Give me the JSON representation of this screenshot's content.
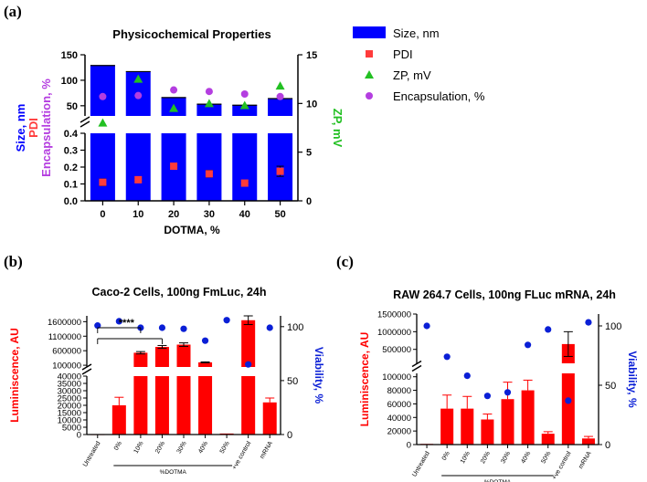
{
  "chart_data": [
    {
      "panel": "(a)",
      "type": "bar",
      "title": "Physicochemical Properties",
      "xlabel": "DOTMA, %",
      "categories": [
        "0",
        "10",
        "20",
        "30",
        "40",
        "50"
      ],
      "ylabel_lines": [
        "Size, nm",
        "PDI",
        "Encapsulation, %"
      ],
      "y2label": "ZP, mV",
      "ylim_upper": [
        30,
        150
      ],
      "yticks_upper": [
        "50",
        "100",
        "150"
      ],
      "ylim_lower": [
        0,
        0.4
      ],
      "yticks_lower": [
        "0.0",
        "0.1",
        "0.2",
        "0.3",
        "0.4"
      ],
      "y2lim": [
        0,
        15
      ],
      "y2ticks": [
        "0",
        "5",
        "10",
        "15"
      ],
      "legend": [
        "Size, nm",
        "PDI",
        "ZP, mV",
        "Encapsulation, %"
      ],
      "legend_position": "right",
      "series": [
        {
          "name": "Size, nm",
          "kind": "bar",
          "values": [
            129,
            117,
            66,
            53,
            51,
            64
          ]
        },
        {
          "name": "PDI",
          "kind": "marker",
          "values": [
            0.11,
            0.125,
            0.205,
            0.16,
            0.105,
            0.175
          ],
          "errors": [
            0.02,
            0.01,
            0.01,
            0.02,
            0.01,
            0.03
          ]
        },
        {
          "name": "ZP, mV",
          "kind": "marker",
          "values": [
            8.0,
            12.5,
            9.5,
            10.0,
            9.8,
            11.8
          ]
        },
        {
          "name": "Encapsulation, %",
          "kind": "marker",
          "values": [
            68,
            70,
            81,
            78,
            73,
            68
          ]
        }
      ],
      "colors": {
        "bar": "#0000ff",
        "pdi": "#ff3b3b",
        "zp": "#22c022",
        "enc": "#b43ee0"
      }
    },
    {
      "panel": "(b)",
      "type": "bar",
      "title": "Caco-2 Cells, 100ng FmLuc, 24h",
      "ylabel": "Luminiscence, AU",
      "y2label": "Viability, %",
      "xgroup_label": "%DOTMA",
      "categories": [
        "Untreated",
        "0%",
        "10%",
        "20%",
        "30%",
        "40%",
        "50%",
        "+ve control",
        "mRNA"
      ],
      "yticks_lower": [
        "0",
        "5000",
        "10000",
        "15000",
        "20000",
        "25000",
        "30000",
        "35000",
        "40000"
      ],
      "yticks_upper": [
        "100000",
        "600000",
        "1100000",
        "1600000"
      ],
      "ylim_lower": [
        0,
        40000
      ],
      "ylim_upper": [
        40000,
        1800000
      ],
      "y2lim": [
        0,
        110
      ],
      "y2ticks": [
        "0",
        "50",
        "100"
      ],
      "annotation": "****",
      "series": [
        {
          "name": "Luminiscence",
          "kind": "bar",
          "values": [
            150,
            20000,
            530000,
            730000,
            810000,
            200000,
            700,
            1650000,
            22000
          ],
          "errors": [
            0,
            5500,
            40000,
            50000,
            60000,
            15000,
            0,
            150000,
            3000
          ]
        },
        {
          "name": "Viability",
          "kind": "marker",
          "values": [
            101,
            105,
            99,
            99,
            98,
            87,
            106,
            65,
            99
          ]
        }
      ],
      "colors": {
        "bar": "#ff0000",
        "viability": "#0a1fd6"
      }
    },
    {
      "panel": "(c)",
      "type": "bar",
      "title": "RAW 264.7 Cells, 100ng FLuc mRNA, 24h",
      "ylabel": "Luminiscence, AU",
      "y2label": "Viability, %",
      "xgroup_label": "%DOTMA",
      "categories": [
        "Untreated",
        "0%",
        "10%",
        "20%",
        "30%",
        "40%",
        "50%",
        "+ve control",
        "mRNA"
      ],
      "yticks_lower": [
        "0",
        "20000",
        "40000",
        "60000",
        "80000",
        "100000"
      ],
      "yticks_upper": [
        "500000",
        "1000000",
        "1500000"
      ],
      "ylim_lower": [
        0,
        105000
      ],
      "ylim_upper": [
        105000,
        1500000
      ],
      "y2lim": [
        0,
        110
      ],
      "y2ticks": [
        "0",
        "50",
        "100"
      ],
      "series": [
        {
          "name": "Luminiscence",
          "kind": "bar",
          "values": [
            1000,
            53000,
            53000,
            37000,
            67000,
            80000,
            16000,
            650000,
            9000
          ],
          "errors": [
            0,
            20000,
            18000,
            8000,
            25000,
            15000,
            3000,
            350000,
            3000
          ]
        },
        {
          "name": "Viability",
          "kind": "marker",
          "values": [
            100,
            74,
            58,
            41,
            44,
            84,
            97,
            37,
            103
          ]
        }
      ],
      "colors": {
        "bar": "#ff0000",
        "viability": "#0a1fd6"
      }
    }
  ]
}
